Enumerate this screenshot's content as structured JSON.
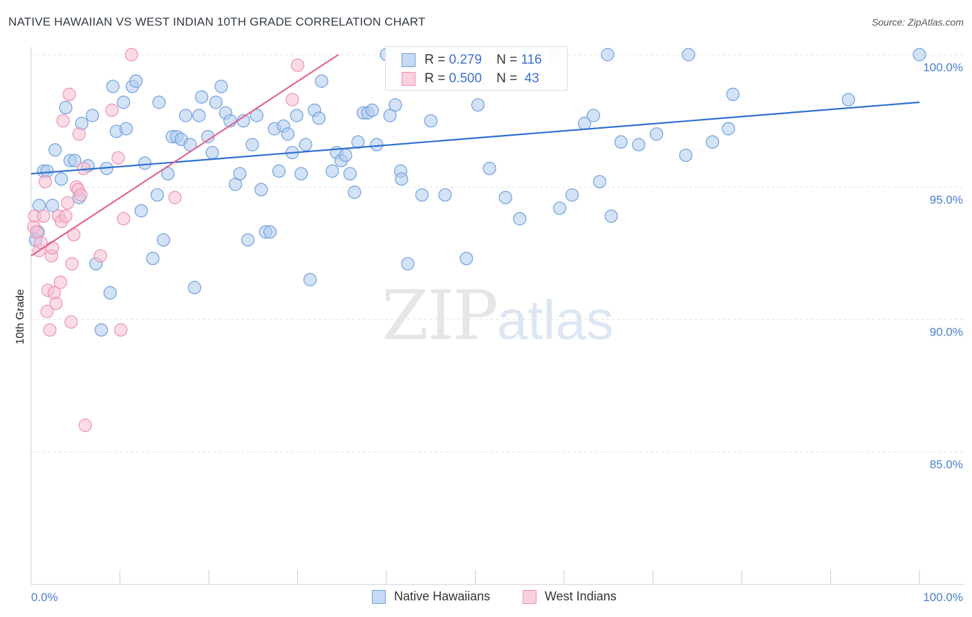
{
  "header": {
    "title": "NATIVE HAWAIIAN VS WEST INDIAN 10TH GRADE CORRELATION CHART",
    "source": "Source: ZipAtlas.com"
  },
  "watermark": {
    "zip": "ZIP",
    "atlas": "atlas"
  },
  "legend_top": {
    "rows": [
      {
        "r_label": "R =",
        "r_value": "0.279",
        "n_label": "N =",
        "n_value": "116"
      },
      {
        "r_label": "R =",
        "r_value": "0.500",
        "n_label": "N =",
        "n_value": "43"
      }
    ]
  },
  "legend_bottom": {
    "items": [
      {
        "label": "Native Hawaiians"
      },
      {
        "label": "West Indians"
      }
    ]
  },
  "colors": {
    "blue_fill": "#aecbef",
    "blue_stroke": "#6f9fdd",
    "blue_line": "#2f6fd0",
    "pink_fill": "#f7c0d1",
    "pink_stroke": "#ee8fb0",
    "pink_line": "#e0648f",
    "axis_text": "#4a7ecf",
    "grid": "#dfe3e8"
  },
  "chart_data": {
    "type": "scatter",
    "title": "NATIVE HAWAIIAN VS WEST INDIAN 10TH GRADE CORRELATION CHART",
    "xlabel": "",
    "ylabel": "10th Grade",
    "xlim": [
      0,
      100
    ],
    "ylim": [
      80.5,
      100.7
    ],
    "x_tick_labels": [
      "0.0%",
      "100.0%"
    ],
    "y_ticks": [
      85,
      90,
      95,
      100
    ],
    "y_tick_labels": [
      "85.0%",
      "90.0%",
      "95.0%",
      "100.0%"
    ],
    "grid": true,
    "series": [
      {
        "name": "Native Hawaiians",
        "color": "#6f9fdd",
        "R": 0.279,
        "N": 116,
        "trend": {
          "x": [
            0,
            100
          ],
          "y": [
            95.5,
            98.2
          ]
        },
        "points": [
          [
            0.5,
            93.0
          ],
          [
            0.8,
            93.3
          ],
          [
            0.9,
            94.3
          ],
          [
            1.4,
            95.6
          ],
          [
            1.8,
            95.6
          ],
          [
            2.4,
            94.3
          ],
          [
            2.7,
            96.4
          ],
          [
            3.4,
            95.3
          ],
          [
            3.9,
            98.0
          ],
          [
            4.4,
            96.0
          ],
          [
            4.9,
            96.0
          ],
          [
            5.4,
            94.6
          ],
          [
            5.7,
            97.4
          ],
          [
            6.4,
            95.8
          ],
          [
            6.9,
            97.7
          ],
          [
            7.3,
            92.1
          ],
          [
            7.9,
            89.6
          ],
          [
            8.5,
            95.7
          ],
          [
            8.9,
            91.0
          ],
          [
            9.2,
            98.8
          ],
          [
            9.6,
            97.1
          ],
          [
            10.4,
            98.2
          ],
          [
            10.7,
            97.2
          ],
          [
            11.4,
            98.8
          ],
          [
            11.8,
            99.0
          ],
          [
            12.4,
            94.1
          ],
          [
            12.8,
            95.9
          ],
          [
            13.7,
            92.3
          ],
          [
            14.2,
            94.7
          ],
          [
            14.4,
            98.2
          ],
          [
            14.9,
            93.0
          ],
          [
            15.4,
            95.5
          ],
          [
            15.9,
            96.9
          ],
          [
            16.4,
            96.9
          ],
          [
            16.9,
            96.8
          ],
          [
            17.4,
            97.7
          ],
          [
            17.9,
            96.6
          ],
          [
            18.4,
            91.2
          ],
          [
            18.9,
            97.7
          ],
          [
            19.2,
            98.4
          ],
          [
            19.9,
            96.9
          ],
          [
            20.4,
            96.3
          ],
          [
            20.8,
            98.2
          ],
          [
            21.4,
            98.8
          ],
          [
            21.9,
            97.8
          ],
          [
            22.4,
            97.5
          ],
          [
            23.0,
            95.1
          ],
          [
            23.5,
            95.5
          ],
          [
            23.9,
            97.5
          ],
          [
            24.4,
            93.0
          ],
          [
            24.9,
            96.6
          ],
          [
            25.4,
            97.7
          ],
          [
            25.9,
            94.9
          ],
          [
            26.4,
            93.3
          ],
          [
            26.9,
            93.3
          ],
          [
            27.4,
            97.2
          ],
          [
            27.9,
            95.6
          ],
          [
            28.4,
            97.3
          ],
          [
            28.9,
            97.0
          ],
          [
            29.4,
            96.3
          ],
          [
            29.9,
            97.7
          ],
          [
            30.4,
            95.5
          ],
          [
            30.9,
            96.6
          ],
          [
            31.4,
            91.5
          ],
          [
            31.9,
            97.9
          ],
          [
            32.4,
            97.6
          ],
          [
            32.7,
            99.0
          ],
          [
            33.9,
            95.6
          ],
          [
            34.4,
            96.3
          ],
          [
            34.9,
            96.0
          ],
          [
            35.4,
            96.2
          ],
          [
            35.9,
            95.5
          ],
          [
            36.4,
            94.8
          ],
          [
            36.8,
            96.7
          ],
          [
            37.4,
            97.8
          ],
          [
            37.9,
            97.8
          ],
          [
            38.4,
            97.9
          ],
          [
            38.9,
            96.6
          ],
          [
            40.0,
            100.0
          ],
          [
            40.4,
            97.7
          ],
          [
            41.0,
            98.1
          ],
          [
            41.6,
            95.6
          ],
          [
            41.7,
            95.3
          ],
          [
            42.4,
            92.1
          ],
          [
            44.0,
            94.7
          ],
          [
            45.0,
            97.5
          ],
          [
            46.6,
            94.7
          ],
          [
            49.0,
            92.3
          ],
          [
            50.3,
            98.1
          ],
          [
            51.6,
            95.7
          ],
          [
            53.4,
            94.6
          ],
          [
            55.0,
            93.8
          ],
          [
            56.0,
            100.0
          ],
          [
            58.9,
            100.0
          ],
          [
            59.5,
            94.2
          ],
          [
            60.9,
            94.7
          ],
          [
            62.3,
            97.4
          ],
          [
            63.3,
            97.7
          ],
          [
            64.0,
            95.2
          ],
          [
            64.9,
            100.0
          ],
          [
            65.3,
            93.9
          ],
          [
            66.4,
            96.7
          ],
          [
            68.4,
            96.6
          ],
          [
            70.4,
            97.0
          ],
          [
            74.0,
            100.0
          ],
          [
            73.7,
            96.2
          ],
          [
            76.7,
            96.7
          ],
          [
            78.5,
            97.2
          ],
          [
            79.0,
            98.5
          ],
          [
            92.0,
            98.3
          ],
          [
            100.0,
            100.0
          ]
        ]
      },
      {
        "name": "West Indians",
        "color": "#ee8fb0",
        "R": 0.5,
        "N": 43,
        "trend": {
          "x": [
            0,
            34.6
          ],
          "y": [
            92.4,
            100.0
          ]
        },
        "points": [
          [
            0.3,
            93.5
          ],
          [
            0.4,
            93.9
          ],
          [
            0.6,
            93.3
          ],
          [
            0.9,
            92.6
          ],
          [
            1.1,
            92.9
          ],
          [
            1.4,
            93.9
          ],
          [
            1.6,
            95.2
          ],
          [
            1.8,
            90.3
          ],
          [
            1.9,
            91.1
          ],
          [
            2.1,
            89.6
          ],
          [
            2.3,
            92.4
          ],
          [
            2.4,
            92.7
          ],
          [
            2.6,
            91.0
          ],
          [
            2.8,
            90.6
          ],
          [
            3.1,
            93.9
          ],
          [
            3.3,
            91.4
          ],
          [
            3.4,
            93.7
          ],
          [
            3.6,
            97.5
          ],
          [
            3.9,
            93.9
          ],
          [
            4.1,
            94.4
          ],
          [
            4.3,
            98.5
          ],
          [
            4.5,
            89.9
          ],
          [
            4.6,
            92.1
          ],
          [
            4.8,
            93.2
          ],
          [
            5.1,
            95.0
          ],
          [
            5.3,
            94.9
          ],
          [
            5.4,
            97.0
          ],
          [
            5.6,
            94.7
          ],
          [
            5.9,
            95.7
          ],
          [
            6.1,
            86.0
          ],
          [
            7.8,
            92.4
          ],
          [
            9.1,
            97.9
          ],
          [
            9.8,
            96.1
          ],
          [
            10.1,
            89.6
          ],
          [
            10.4,
            93.8
          ],
          [
            11.3,
            100.0
          ],
          [
            16.2,
            94.6
          ],
          [
            29.4,
            98.3
          ],
          [
            30.0,
            99.6
          ]
        ]
      }
    ]
  }
}
